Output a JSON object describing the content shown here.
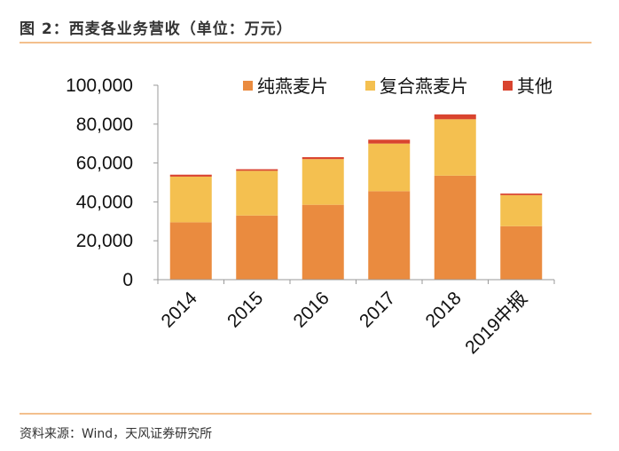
{
  "header": {
    "title": "图 2：西麦各业务营收（单位：万元）"
  },
  "footer": {
    "source": "资料来源：Wind，天风证券研究所"
  },
  "chart_data": {
    "type": "bar",
    "stacked": true,
    "title": "",
    "xlabel": "",
    "ylabel": "",
    "categories": [
      "2014",
      "2015",
      "2016",
      "2017",
      "2018",
      "2019中报"
    ],
    "ylim": [
      0,
      100000
    ],
    "yticks": [
      0,
      20000,
      40000,
      60000,
      80000,
      100000
    ],
    "ytick_labels": [
      "0",
      "20,000",
      "40,000",
      "60,000",
      "80,000",
      "100,000"
    ],
    "legend_position": "top-right",
    "grid": false,
    "series": [
      {
        "name": "纯燕麦片",
        "color": "#ea8b3f",
        "values": [
          29500,
          33000,
          38500,
          45500,
          53500,
          27500
        ]
      },
      {
        "name": "复合燕麦片",
        "color": "#f4c050",
        "values": [
          23500,
          23000,
          23500,
          24500,
          29000,
          16000
        ]
      },
      {
        "name": "其他",
        "color": "#d9442f",
        "values": [
          1000,
          800,
          1000,
          2000,
          2500,
          800
        ]
      }
    ]
  }
}
